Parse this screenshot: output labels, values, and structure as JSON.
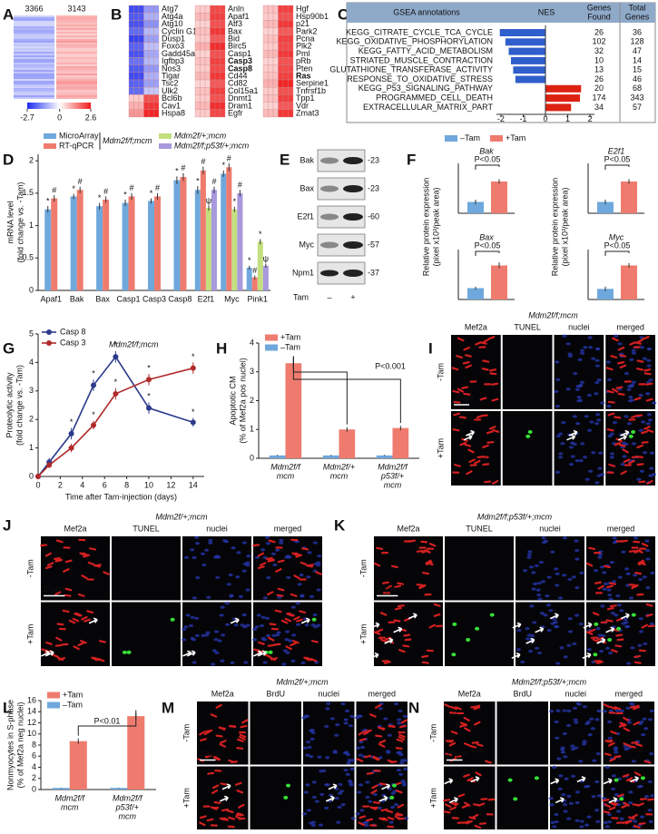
{
  "heatmap_a": {
    "label": "A",
    "gene_counts": [
      3366,
      3143
    ],
    "colorbar": {
      "ticks": [
        -2.7,
        0,
        2.6
      ],
      "colors": [
        "#1c2cf0",
        "#ffffff",
        "#f01c1c"
      ]
    }
  },
  "heatmap_b": {
    "label": "B",
    "columns": [
      [
        {
          "name": "Atg7",
          "values": [
            -2.3,
            -1.3
          ]
        },
        {
          "name": "Atg4a",
          "values": [
            -2.1,
            -1.0
          ]
        },
        {
          "name": "Atg10",
          "values": [
            -2.2,
            -1.4
          ]
        },
        {
          "name": "Cyclin G1",
          "values": [
            -1.9,
            -0.9
          ]
        },
        {
          "name": "Dusp1",
          "values": [
            -2.4,
            -1.2
          ]
        },
        {
          "name": "Foxo3",
          "values": [
            -2.0,
            -0.8
          ]
        },
        {
          "name": "Gadd45a",
          "values": [
            -2.2,
            -1.1
          ]
        },
        {
          "name": "Igfbp3",
          "values": [
            -1.8,
            -0.9
          ]
        },
        {
          "name": "Nos3",
          "values": [
            -2.1,
            -1.3
          ]
        },
        {
          "name": "Tigar",
          "values": [
            -2.3,
            -1.0
          ]
        },
        {
          "name": "Tsc2",
          "values": [
            -2.0,
            -1.2
          ]
        },
        {
          "name": "Ulk2",
          "values": [
            -1.9,
            -0.7
          ]
        },
        {
          "name": "Bcl6b",
          "values": [
            0.6,
            2.0
          ]
        },
        {
          "name": "Cav1",
          "values": [
            0.9,
            2.3
          ]
        },
        {
          "name": "Hspa8",
          "values": [
            1.2,
            2.5
          ]
        }
      ],
      [
        {
          "name": "Anln",
          "values": [
            0.6,
            2.1
          ]
        },
        {
          "name": "Apaf1",
          "values": [
            0.8,
            2.2
          ]
        },
        {
          "name": "Atf3",
          "values": [
            0.5,
            2.0
          ]
        },
        {
          "name": "Bax",
          "values": [
            0.7,
            2.3
          ]
        },
        {
          "name": "Bid",
          "values": [
            0.6,
            1.9
          ]
        },
        {
          "name": "Birc5",
          "values": [
            0.9,
            2.4
          ]
        },
        {
          "name": "Casp1",
          "values": [
            0.5,
            2.0
          ]
        },
        {
          "name": "Casp3",
          "values": [
            0.7,
            2.2
          ],
          "bold": true
        },
        {
          "name": "Casp8",
          "values": [
            0.6,
            2.1
          ],
          "bold": true
        },
        {
          "name": "Cd44",
          "values": [
            0.8,
            2.3
          ]
        },
        {
          "name": "Cd82",
          "values": [
            0.5,
            1.9
          ]
        },
        {
          "name": "Col15a1",
          "values": [
            0.7,
            2.2
          ]
        },
        {
          "name": "Dnmt1",
          "values": [
            0.6,
            2.0
          ]
        },
        {
          "name": "Dram1",
          "values": [
            0.8,
            2.4
          ]
        },
        {
          "name": "Egfr",
          "values": [
            0.6,
            2.1
          ]
        }
      ],
      [
        {
          "name": "Hgf",
          "values": [
            0.7,
            2.2
          ]
        },
        {
          "name": "Hsp90b1",
          "values": [
            0.6,
            2.0
          ]
        },
        {
          "name": "p21",
          "values": [
            0.8,
            2.3
          ]
        },
        {
          "name": "Park2",
          "values": [
            0.5,
            1.9
          ]
        },
        {
          "name": "Pcna",
          "values": [
            0.7,
            2.2
          ]
        },
        {
          "name": "Plk2",
          "values": [
            0.6,
            2.1
          ]
        },
        {
          "name": "Pml",
          "values": [
            0.8,
            2.3
          ]
        },
        {
          "name": "pRb",
          "values": [
            0.5,
            2.0
          ]
        },
        {
          "name": "Pten",
          "values": [
            0.6,
            2.1
          ]
        },
        {
          "name": "Ras",
          "values": [
            0.7,
            2.2
          ],
          "bold": true
        },
        {
          "name": "Serpine1",
          "values": [
            0.9,
            2.5
          ]
        },
        {
          "name": "Tnfrsf1b",
          "values": [
            0.6,
            2.0
          ]
        },
        {
          "name": "Tpp1",
          "values": [
            0.7,
            2.2
          ]
        },
        {
          "name": "Vdr",
          "values": [
            0.5,
            1.9
          ]
        },
        {
          "name": "Zmat3",
          "values": [
            0.8,
            2.3
          ]
        }
      ]
    ]
  },
  "gsea": {
    "label": "C",
    "type": "bar",
    "headers": {
      "annotations": "GSEA annotations",
      "nes": "NES",
      "found": [
        "Genes",
        "Found"
      ],
      "total": [
        "Total",
        "Genes"
      ]
    },
    "categories": [
      "KEGG_CITRATE_CYCLE_TCA_CYCLE",
      "KEGG_OXIDATIVE_PHOSPHORYLATION",
      "KEGG_FATTY_ACID_METABOLISM",
      "STRIATED_MUSCLE_CONTRACTION",
      "GLUTATHIONE_TRANSFERASE_ACTIVITY",
      "RESPONSE_TO_OXIDATIVE_STRESS",
      "KEGG_P53_SIGNALING_PATHWAY",
      "PROGRAMMED_CELL_DEATH",
      "EXTRACELLULAR_MATRIX_PART"
    ],
    "values": [
      -2.05,
      -1.8,
      -1.65,
      -1.55,
      -1.45,
      -1.35,
      1.6,
      1.55,
      1.15
    ],
    "colors": [
      "#2f5fcc",
      "#2f5fcc",
      "#2f5fcc",
      "#2f5fcc",
      "#2f5fcc",
      "#2f5fcc",
      "#dd2211",
      "#dd2211",
      "#dd2211"
    ],
    "genes_found": [
      26,
      102,
      32,
      10,
      13,
      26,
      20,
      174,
      34
    ],
    "total_genes": [
      36,
      128,
      47,
      14,
      15,
      46,
      68,
      343,
      57
    ],
    "xlim": [
      -2.2,
      2.2
    ],
    "xticks": [
      -2,
      -1,
      0,
      1,
      2
    ]
  },
  "mrna": {
    "label": "D",
    "type": "bar",
    "ylabel": [
      "mRNA level",
      "(fold change vs. -Tam)"
    ],
    "legend_group_label": "Mdm2f/f;mcm",
    "categories": [
      "Apaf1",
      "Bak",
      "Bax",
      "Casp1",
      "Casp3",
      "Casp8",
      "E2f1",
      "Myc",
      "Pink1"
    ],
    "ylim": [
      0,
      2.1
    ],
    "yticks": [
      0,
      0.5,
      1,
      1.5,
      2
    ],
    "series": [
      {
        "name": "MicroArray",
        "color": "#6fa8dc",
        "values": [
          1.25,
          1.45,
          1.3,
          1.35,
          1.38,
          1.7,
          1.55,
          1.8,
          0.35
        ],
        "errors": [
          0.05,
          0.04,
          0.05,
          0.05,
          0.04,
          0.06,
          0.06,
          0.05,
          0.03
        ],
        "markers": [
          "*",
          "*",
          "*",
          "*",
          "*",
          "*",
          "*",
          "*",
          "*"
        ]
      },
      {
        "name": "RT-qPCR",
        "color": "#ef7b6f",
        "values": [
          1.42,
          1.55,
          1.4,
          1.45,
          1.45,
          1.75,
          1.85,
          1.9,
          0.2
        ],
        "errors": [
          0.05,
          0.05,
          0.05,
          0.05,
          0.05,
          0.06,
          0.06,
          0.06,
          0.03
        ],
        "markers": [
          "#",
          "#",
          "#",
          "#",
          "#",
          "#",
          "#",
          "#",
          "#"
        ]
      },
      {
        "name": "Mdm2f/+;mcm",
        "color": "#c3df7e",
        "values": [
          null,
          null,
          null,
          null,
          null,
          null,
          1.27,
          1.25,
          0.75
        ],
        "errors": [
          null,
          null,
          null,
          null,
          null,
          null,
          0.04,
          0.04,
          0.04
        ],
        "markers": [
          null,
          null,
          null,
          null,
          null,
          null,
          "ψ",
          "*",
          "*"
        ]
      },
      {
        "name": "Mdm2f/f;p53f/+;mcm",
        "color": "#a898dc",
        "values": [
          null,
          null,
          null,
          null,
          null,
          null,
          1.55,
          1.5,
          0.38
        ],
        "errors": [
          null,
          null,
          null,
          null,
          null,
          null,
          0.05,
          0.05,
          0.03
        ],
        "markers": [
          null,
          null,
          null,
          null,
          null,
          null,
          "#",
          "#",
          "ψ"
        ]
      }
    ]
  },
  "western": {
    "label": "E",
    "proteins": [
      "Bak",
      "Bax",
      "E2f1",
      "Myc",
      "Npm1"
    ],
    "sizes": [
      "-23",
      "-23",
      "-60",
      "-57",
      "-37"
    ],
    "treatment": "Tam",
    "lanes": [
      "–",
      "+"
    ]
  },
  "protein": {
    "label": "F",
    "type": "bar",
    "ylabel": [
      "Relative protein expression",
      "(pixel x10³/peak area)"
    ],
    "annotation": "P<0.05",
    "ylim": [
      0,
      60
    ],
    "series": [
      {
        "name": "–Tam",
        "color": "#6fa8dc"
      },
      {
        "name": "+Tam",
        "color": "#ef7b6f"
      }
    ],
    "charts": [
      {
        "title": "Bak",
        "values": [
          15,
          42
        ],
        "errors": [
          3,
          3
        ]
      },
      {
        "title": "E2f1",
        "values": [
          15,
          42
        ],
        "errors": [
          3,
          3
        ]
      },
      {
        "title": "Bax",
        "values": [
          15,
          45
        ],
        "errors": [
          2,
          4
        ]
      },
      {
        "title": "Myc",
        "values": [
          14,
          45
        ],
        "errors": [
          3,
          3
        ]
      }
    ]
  },
  "caspase": {
    "label": "G",
    "type": "line",
    "title": "Mdm2f/f;mcm",
    "xlabel": "Time after Tam-injection (days)",
    "ylabel": [
      "Proteolytic activity",
      "(fold change vs. -Tam)"
    ],
    "x": [
      0,
      1,
      3,
      5,
      7,
      10,
      14
    ],
    "xlim": [
      0,
      15
    ],
    "xticks": [
      0,
      2,
      4,
      6,
      8,
      10,
      12,
      14
    ],
    "ylim": [
      0,
      5
    ],
    "yticks": [
      0,
      1,
      2,
      3,
      4,
      5
    ],
    "series": [
      {
        "name": "Casp 8",
        "color": "#2b3a8c",
        "values": [
          0,
          0.5,
          1.5,
          3.2,
          4.2,
          2.4,
          1.9
        ],
        "errors": [
          0.1,
          0.15,
          0.2,
          0.2,
          0.2,
          0.2,
          0.15
        ],
        "markers": [
          null,
          null,
          "*",
          "*",
          "*",
          "*",
          "*"
        ]
      },
      {
        "name": "Casp 3",
        "color": "#b02a2a",
        "values": [
          0,
          0.4,
          1.0,
          1.8,
          2.9,
          3.4,
          3.8
        ],
        "errors": [
          0.1,
          0.1,
          0.15,
          0.15,
          0.2,
          0.2,
          0.2
        ],
        "markers": [
          null,
          null,
          null,
          "*",
          "*",
          "*",
          "*"
        ]
      }
    ]
  },
  "apoptosis": {
    "label": "H",
    "type": "bar",
    "ylabel": [
      "Apoptotic CM",
      "(% of Mef2a pos nuclei)"
    ],
    "annotation": "P<0.001",
    "categories": [
      [
        "Mdm2f/f",
        "mcm"
      ],
      [
        "Mdm2f/+",
        "mcm"
      ],
      [
        "Mdm2f/f",
        "p53f/+",
        "mcm"
      ]
    ],
    "ylim": [
      0,
      4
    ],
    "yticks": [
      0,
      1,
      2,
      3,
      4
    ],
    "series": [
      {
        "name": "+Tam",
        "color": "#ef7b6f",
        "values": [
          3.3,
          1.0,
          1.05
        ],
        "errors": [
          0.15,
          0.08,
          0.08
        ]
      },
      {
        "name": "–Tam",
        "color": "#6fa8dc",
        "values": [
          0.1,
          0.1,
          0.1
        ],
        "errors": [
          0.02,
          0.02,
          0.02
        ]
      }
    ]
  },
  "s_phase": {
    "label": "L",
    "type": "bar",
    "ylabel": [
      "Nonmyocytes in S-phase",
      "(% of Mef2a neg nuclei)"
    ],
    "annotation": "P<0.01",
    "categories": [
      [
        "Mdm2f/f",
        "mcm"
      ],
      [
        "Mdm2f/f",
        "p53f/+",
        "mcm"
      ]
    ],
    "ylim": [
      0,
      16
    ],
    "yticks": [
      0,
      2,
      4,
      6,
      8,
      10,
      12,
      14,
      16
    ],
    "series": [
      {
        "name": "+Tam",
        "color": "#ef7b6f",
        "values": [
          8.7,
          13.2
        ],
        "errors": [
          0.5,
          0.6
        ]
      },
      {
        "name": "–Tam",
        "color": "#6fa8dc",
        "values": [
          0.3,
          0.3
        ],
        "errors": [
          0.05,
          0.05
        ]
      }
    ]
  },
  "images": [
    {
      "label": "I",
      "title": "Mdm2f/f;mcm",
      "columns": [
        "Mef2a",
        "TUNEL",
        "nuclei",
        "merged"
      ],
      "rows": [
        "-Tam",
        "+Tam"
      ],
      "scale_bar": "20μm"
    },
    {
      "label": "J",
      "title": "Mdm2f/+;mcm",
      "columns": [
        "Mef2a",
        "TUNEL",
        "nuclei",
        "merged"
      ],
      "rows": [
        "-Tam",
        "+Tam"
      ],
      "scale_bar": "20μm"
    },
    {
      "label": "K",
      "title": "Mdm2f/f;p53f/+;mcm",
      "columns": [
        "Mef2a",
        "TUNEL",
        "nuclei",
        "merged"
      ],
      "rows": [
        "-Tam",
        "+Tam"
      ],
      "scale_bar": "20μm"
    },
    {
      "label": "M",
      "title": "Mdm2f/+;mcm",
      "columns": [
        "Mef2a",
        "BrdU",
        "nuclei",
        "merged"
      ],
      "rows": [
        "-Tam",
        "+Tam"
      ],
      "scale_bar": "20μm"
    },
    {
      "label": "N",
      "title": "Mdm2f/f;p53f/+;mcm",
      "columns": [
        "Mef2a",
        "BrdU",
        "nuclei",
        "merged"
      ],
      "rows": [
        "-Tam",
        "+Tam"
      ],
      "scale_bar": "20μm"
    }
  ]
}
